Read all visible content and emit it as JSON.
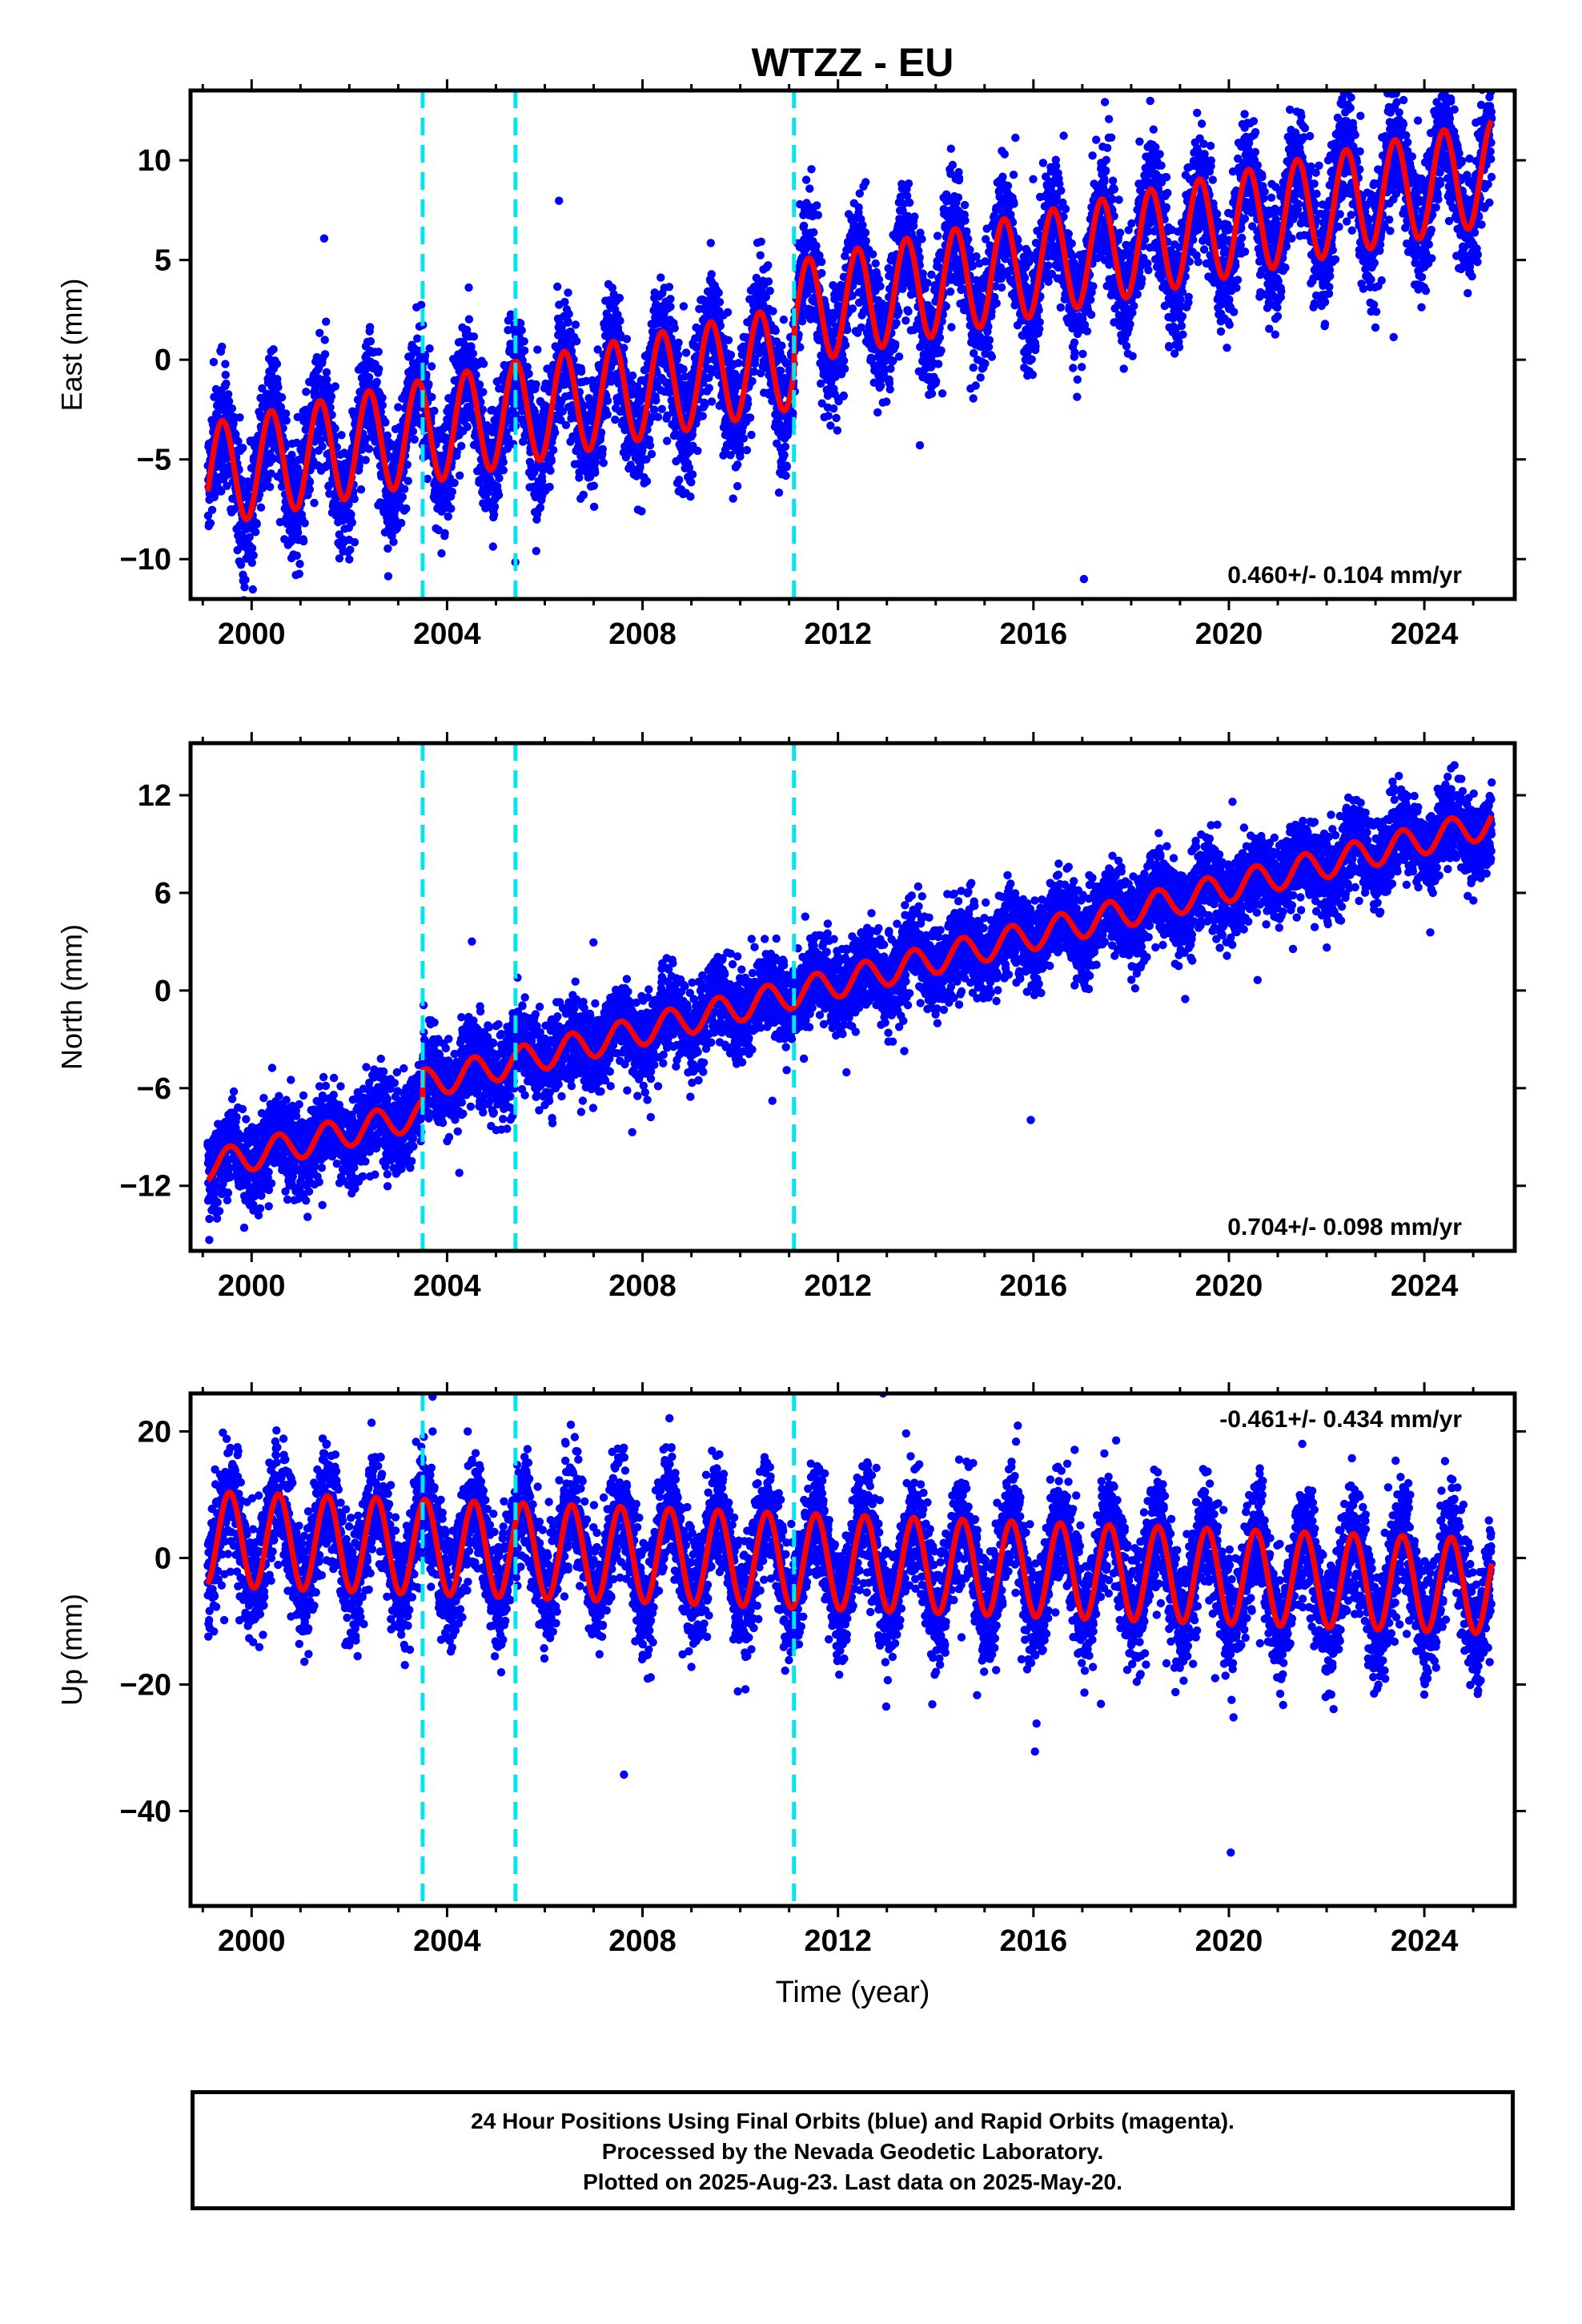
{
  "title": "WTZZ - EU",
  "xlabel": "Time (year)",
  "caption": [
    "24 Hour Positions Using Final Orbits (blue) and Rapid Orbits (magenta).",
    "Processed by the Nevada Geodetic Laboratory.",
    "Plotted on 2025-Aug-23. Last data on 2025-May-20."
  ],
  "colors": {
    "points": "#0000ff",
    "model": "#ff0000",
    "breaks": "#00e5ee",
    "frame": "#000000"
  },
  "chart_data": [
    {
      "type": "scatter",
      "component": "east",
      "ylabel": "East (mm)",
      "rate_label": "0.460+/- 0.104 mm/yr",
      "rate_position": "bottom-right",
      "xlim": [
        1998.75,
        2025.85
      ],
      "ylim": [
        -12,
        13.5
      ],
      "xticks": [
        2000,
        2004,
        2008,
        2012,
        2016,
        2020,
        2024
      ],
      "yticks": [
        -10,
        -5,
        0,
        5,
        10
      ],
      "equipment_breaks": [
        2003.5,
        2005.4,
        2011.1
      ],
      "series": [
        {
          "kind": "daily-positions",
          "x_range": [
            1999.1,
            2025.38
          ],
          "model": {
            "trend_start": -5.8,
            "trend_end": 7.2,
            "annual_amplitude": 2.6,
            "offset_2011_1": 2.2,
            "scatter": 1.5
          }
        },
        {
          "kind": "model-curve",
          "x_range": [
            1999.1,
            2025.38
          ]
        }
      ]
    },
    {
      "type": "scatter",
      "component": "north",
      "ylabel": "North (mm)",
      "rate_label": "0.704+/- 0.098 mm/yr",
      "rate_position": "bottom-right",
      "xlim": [
        1998.75,
        2025.85
      ],
      "ylim": [
        -16,
        15.2
      ],
      "xticks": [
        2000,
        2004,
        2008,
        2012,
        2016,
        2020,
        2024
      ],
      "yticks": [
        -12,
        -6,
        0,
        6,
        12
      ],
      "equipment_breaks": [
        2003.5,
        2005.4,
        2011.1
      ],
      "series": [
        {
          "kind": "daily-positions",
          "x_range": [
            1999.1,
            2025.38
          ],
          "model": {
            "trend_start": -10.8,
            "trend_end": 8.5,
            "annual_amplitude": 0.9,
            "offset_2003_5": 1.8,
            "scatter": 1.3
          }
        },
        {
          "kind": "model-curve",
          "x_range": [
            1999.1,
            2025.38
          ]
        }
      ]
    },
    {
      "type": "scatter",
      "component": "up",
      "ylabel": "Up (mm)",
      "rate_label": "-0.461+/- 0.434 mm/yr",
      "rate_position": "top-right",
      "xlim": [
        1998.75,
        2025.85
      ],
      "ylim": [
        -55,
        26
      ],
      "xticks": [
        2000,
        2004,
        2008,
        2012,
        2016,
        2020,
        2024
      ],
      "yticks": [
        -40,
        -20,
        0,
        20
      ],
      "equipment_breaks": [
        2003.5,
        2005.4,
        2011.1
      ],
      "series": [
        {
          "kind": "daily-positions",
          "x_range": [
            1999.1,
            2025.38
          ],
          "model": {
            "trend_start": 3.0,
            "trend_end": -4.5,
            "annual_amplitude": 7.5,
            "scatter": 4.5
          }
        },
        {
          "kind": "model-curve",
          "x_range": [
            1999.1,
            2025.38
          ]
        }
      ]
    }
  ]
}
